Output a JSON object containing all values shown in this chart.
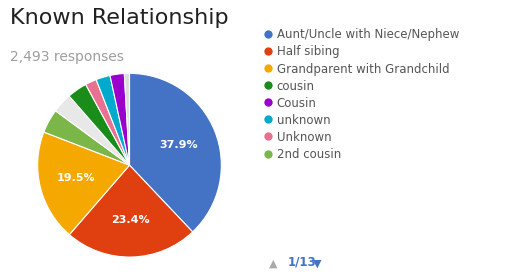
{
  "title": "Known Relationship",
  "subtitle": "2,493 responses",
  "slices": [
    {
      "label": "Aunt/Uncle with Niece/Nephew",
      "pct": 37.9,
      "color": "#4472c4"
    },
    {
      "label": "Half sibing",
      "pct": 23.4,
      "color": "#e04010"
    },
    {
      "label": "Grandparent with Grandchild",
      "pct": 19.5,
      "color": "#f5a800"
    },
    {
      "label": "2nd cousin",
      "pct": 4.2,
      "color": "#7ab648"
    },
    {
      "label": "other_white",
      "pct": 3.5,
      "color": "#e8e8e8"
    },
    {
      "label": "cousin",
      "pct": 3.5,
      "color": "#1a8c1a"
    },
    {
      "label": "Unknown",
      "pct": 2.0,
      "color": "#e87090"
    },
    {
      "label": "unknown",
      "pct": 2.5,
      "color": "#00aacc"
    },
    {
      "label": "Cousin",
      "pct": 2.5,
      "color": "#9900cc"
    },
    {
      "label": "other_dotted",
      "pct": 0.9,
      "color": "#dddddd"
    }
  ],
  "pct_labels": [
    {
      "label": "Aunt/Uncle with Niece/Nephew",
      "text": "37.9%",
      "r": 0.58
    },
    {
      "label": "Half sibing",
      "text": "23.4%",
      "r": 0.6
    },
    {
      "label": "Grandparent with Grandchild",
      "text": "19.5%",
      "r": 0.6
    }
  ],
  "legend_items": [
    {
      "label": "Aunt/Uncle with Niece/Nephew",
      "color": "#4472c4"
    },
    {
      "label": "Half sibing",
      "color": "#e04010"
    },
    {
      "label": "Grandparent with Grandchild",
      "color": "#f5a800"
    },
    {
      "label": "cousin",
      "color": "#1a8c1a"
    },
    {
      "label": "Cousin",
      "color": "#9900cc"
    },
    {
      "label": "unknown",
      "color": "#00aacc"
    },
    {
      "label": "Unknown",
      "color": "#e87090"
    },
    {
      "label": "2nd cousin",
      "color": "#7ab648"
    }
  ],
  "title_fontsize": 16,
  "subtitle_fontsize": 10,
  "title_color": "#212121",
  "subtitle_color": "#9e9e9e",
  "bg_color": "#ffffff",
  "legend_fontsize": 8.5,
  "pagination": "1/13"
}
